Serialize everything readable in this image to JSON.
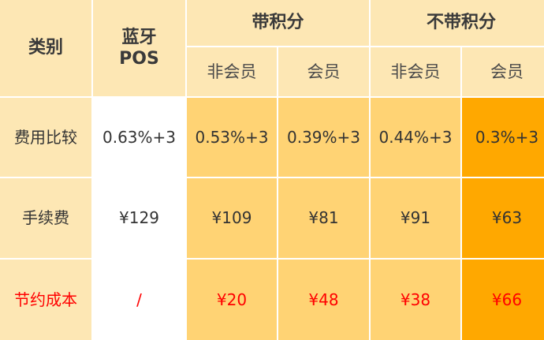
{
  "header": {
    "category": "类别",
    "bluetooth_pos": "蓝牙\nPOS",
    "with_points": "带积分",
    "without_points": "不带积分",
    "non_member": "非会员",
    "member": "会员"
  },
  "rows": [
    {
      "label": "费用比较",
      "values": [
        "0.63%+3",
        "0.53%+3",
        "0.39%+3",
        "0.44%+3",
        "0.3%+3"
      ]
    },
    {
      "label": "手续费",
      "values": [
        "¥129",
        "¥109",
        "¥81",
        "¥91",
        "¥63"
      ]
    },
    {
      "label": "节约成本",
      "values": [
        "/",
        "¥20",
        "¥48",
        "¥38",
        "¥66"
      ]
    }
  ],
  "colors": {
    "header_bg": "#fde7b4",
    "mid_bg": "#ffd374",
    "highlight_bg": "#ffa800",
    "savings_text": "#ff0000"
  }
}
